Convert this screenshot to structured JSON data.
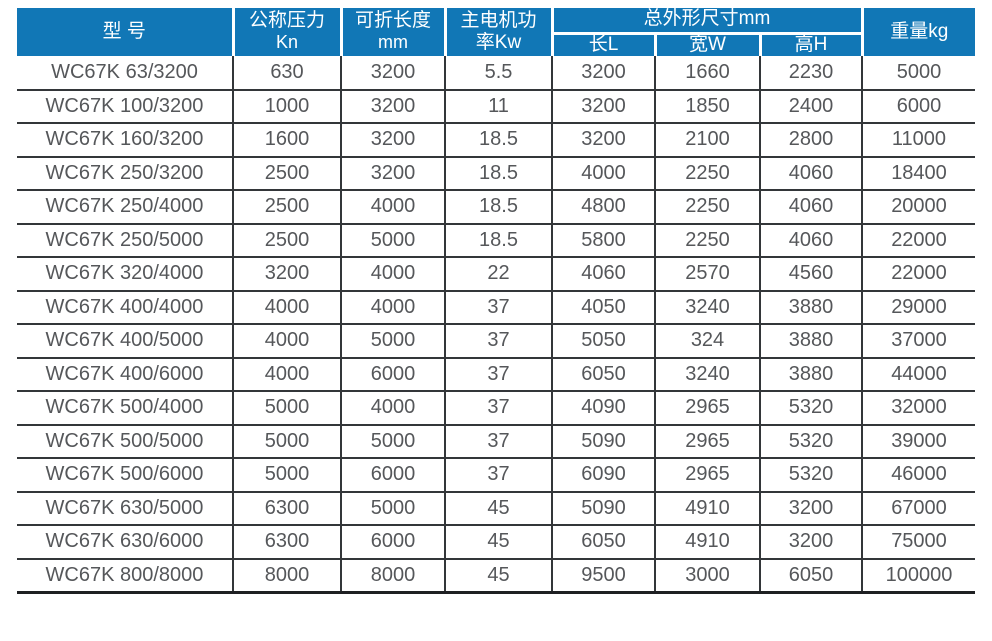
{
  "colors": {
    "header_bg": "#1177b6",
    "header_text": "#ffffff",
    "body_text": "#55575a",
    "grid_line": "#333639",
    "bottom_line": "#1e2022"
  },
  "table": {
    "header": {
      "model": "型 号",
      "pressure_line1": "公称压力",
      "pressure_line2": "Kn",
      "fold_length_line1": "可折长度",
      "fold_length_line2": "mm",
      "motor_power_line1": "主电机功",
      "motor_power_line2": "率Kw",
      "dimensions_group": "总外形尺寸mm",
      "dim_length": "长L",
      "dim_width": "宽W",
      "dim_height": "高H",
      "weight": "重量kg"
    },
    "rows": [
      [
        "WC67K 63/3200",
        "630",
        "3200",
        "5.5",
        "3200",
        "1660",
        "2230",
        "5000"
      ],
      [
        "WC67K 100/3200",
        "1000",
        "3200",
        "11",
        "3200",
        "1850",
        "2400",
        "6000"
      ],
      [
        "WC67K 160/3200",
        "1600",
        "3200",
        "18.5",
        "3200",
        "2100",
        "2800",
        "11000"
      ],
      [
        "WC67K 250/3200",
        "2500",
        "3200",
        "18.5",
        "4000",
        "2250",
        "4060",
        "18400"
      ],
      [
        "WC67K 250/4000",
        "2500",
        "4000",
        "18.5",
        "4800",
        "2250",
        "4060",
        "20000"
      ],
      [
        "WC67K 250/5000",
        "2500",
        "5000",
        "18.5",
        "5800",
        "2250",
        "4060",
        "22000"
      ],
      [
        "WC67K 320/4000",
        "3200",
        "4000",
        "22",
        "4060",
        "2570",
        "4560",
        "22000"
      ],
      [
        "WC67K 400/4000",
        "4000",
        "4000",
        "37",
        "4050",
        "3240",
        "3880",
        "29000"
      ],
      [
        "WC67K 400/5000",
        "4000",
        "5000",
        "37",
        "5050",
        "324",
        "3880",
        "37000"
      ],
      [
        "WC67K 400/6000",
        "4000",
        "6000",
        "37",
        "6050",
        "3240",
        "3880",
        "44000"
      ],
      [
        "WC67K 500/4000",
        "5000",
        "4000",
        "37",
        "4090",
        "2965",
        "5320",
        "32000"
      ],
      [
        "WC67K 500/5000",
        "5000",
        "5000",
        "37",
        "5090",
        "2965",
        "5320",
        "39000"
      ],
      [
        "WC67K 500/6000",
        "5000",
        "6000",
        "37",
        "6090",
        "2965",
        "5320",
        "46000"
      ],
      [
        "WC67K 630/5000",
        "6300",
        "5000",
        "45",
        "5090",
        "4910",
        "3200",
        "67000"
      ],
      [
        "WC67K 630/6000",
        "6300",
        "6000",
        "45",
        "6050",
        "4910",
        "3200",
        "75000"
      ],
      [
        "WC67K 800/8000",
        "8000",
        "8000",
        "45",
        "9500",
        "3000",
        "6050",
        "100000"
      ]
    ]
  }
}
